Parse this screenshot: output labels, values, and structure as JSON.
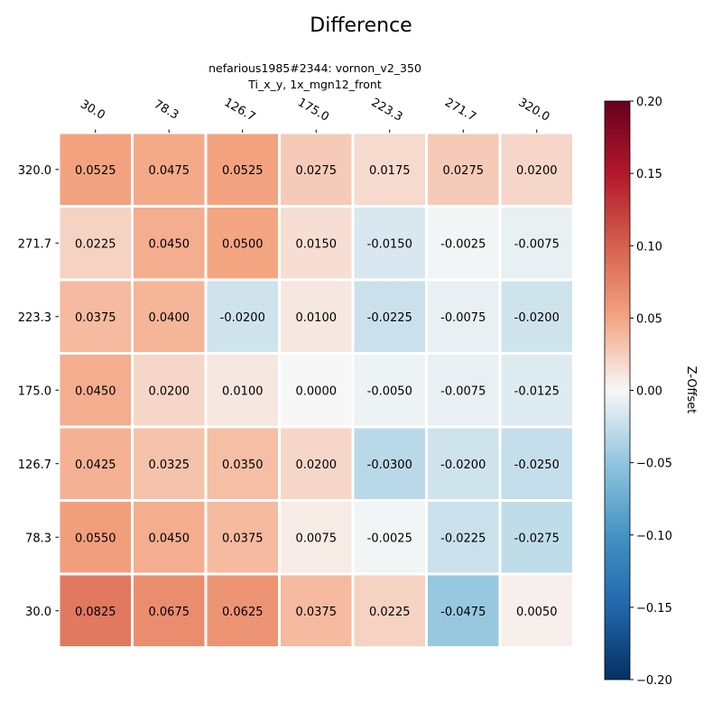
{
  "chart_data": {
    "type": "heatmap",
    "title": "Difference",
    "subtitle_line1": "nefarious1985#2344: vornon_v2_350",
    "subtitle_line2": "Ti_x_y, 1x_mgn12_front",
    "x_labels": [
      "30.0",
      "78.3",
      "126.7",
      "175.0",
      "223.3",
      "271.7",
      "320.0"
    ],
    "y_labels": [
      "320.0",
      "271.7",
      "223.3",
      "175.0",
      "126.7",
      "78.3",
      "30.0"
    ],
    "values": [
      [
        0.0525,
        0.0475,
        0.0525,
        0.0275,
        0.0175,
        0.0275,
        0.02
      ],
      [
        0.0225,
        0.045,
        0.05,
        0.015,
        -0.015,
        -0.0025,
        -0.0075
      ],
      [
        0.0375,
        0.04,
        -0.02,
        0.01,
        -0.0225,
        -0.0075,
        -0.02
      ],
      [
        0.045,
        0.02,
        0.01,
        0.0,
        -0.005,
        -0.0075,
        -0.0125
      ],
      [
        0.0425,
        0.0325,
        0.035,
        0.02,
        -0.03,
        -0.02,
        -0.025
      ],
      [
        0.055,
        0.045,
        0.0375,
        0.0075,
        -0.0025,
        -0.0225,
        -0.0275
      ],
      [
        0.0825,
        0.0675,
        0.0625,
        0.0375,
        0.0225,
        -0.0475,
        0.005
      ]
    ],
    "value_labels": [
      [
        "0.0525",
        "0.0475",
        "0.0525",
        "0.0275",
        "0.0175",
        "0.0275",
        "0.0200"
      ],
      [
        "0.0225",
        "0.0450",
        "0.0500",
        "0.0150",
        "-0.0150",
        "-0.0025",
        "-0.0075"
      ],
      [
        "0.0375",
        "0.0400",
        "-0.0200",
        "0.0100",
        "-0.0225",
        "-0.0075",
        "-0.0200"
      ],
      [
        "0.0450",
        "0.0200",
        "0.0100",
        "0.0000",
        "-0.0050",
        "-0.0075",
        "-0.0125"
      ],
      [
        "0.0425",
        "0.0325",
        "0.0350",
        "0.0200",
        "-0.0300",
        "-0.0200",
        "-0.0250"
      ],
      [
        "0.0550",
        "0.0450",
        "0.0375",
        "0.0075",
        "-0.0025",
        "-0.0225",
        "-0.0275"
      ],
      [
        "0.0825",
        "0.0675",
        "0.0625",
        "0.0375",
        "0.0225",
        "-0.0475",
        "0.0050"
      ]
    ],
    "colorbar": {
      "label": "Z-Offset",
      "vmin": -0.2,
      "vmax": 0.2,
      "colormap": "RdBu_r",
      "ticks": [
        0.2,
        0.15,
        0.1,
        0.05,
        0.0,
        -0.05,
        -0.1,
        -0.15,
        -0.2
      ],
      "tick_labels": [
        "0.20",
        "0.15",
        "0.10",
        "0.05",
        "0.00",
        "−0.05",
        "−0.10",
        "−0.15",
        "−0.20"
      ]
    },
    "grid": false
  }
}
